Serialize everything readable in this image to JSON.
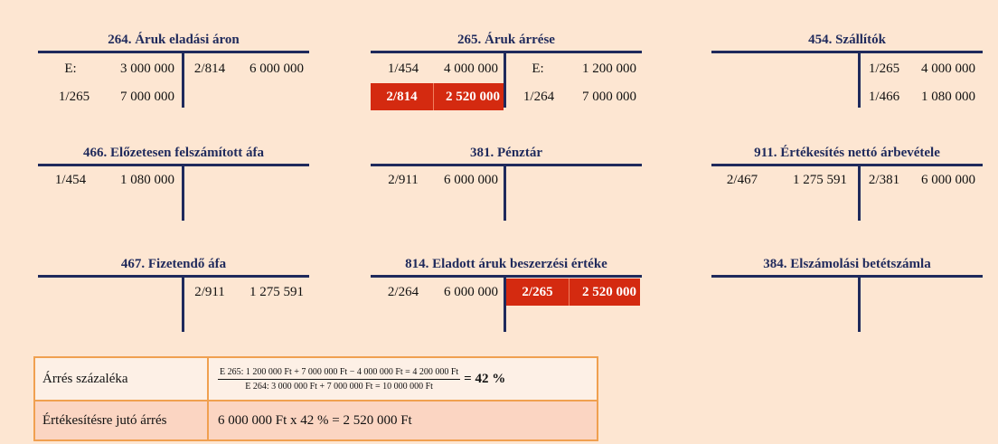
{
  "accounts": [
    {
      "title": "264. Áruk eladási áron",
      "debit": [
        [
          "E:",
          "3 000 000"
        ],
        [
          "1/265",
          "7 000 000"
        ]
      ],
      "credit": [
        [
          "2/814",
          "6 000 000"
        ]
      ]
    },
    {
      "title": "265. Áruk árrése",
      "debit": [
        [
          "1/454",
          "4 000 000"
        ],
        [
          "2/814",
          "2 520 000"
        ]
      ],
      "credit": [
        [
          "E:",
          "1 200 000"
        ],
        [
          "1/264",
          "7 000 000"
        ]
      ]
    },
    {
      "title": "454. Szállítók",
      "debit": [],
      "credit": [
        [
          "1/265",
          "4 000 000"
        ],
        [
          "1/466",
          "1 080 000"
        ]
      ]
    },
    {
      "title": "466. Előzetesen felszámított áfa",
      "debit": [
        [
          "1/454",
          "1 080 000"
        ]
      ],
      "credit": []
    },
    {
      "title": "381. Pénztár",
      "debit": [
        [
          "2/911",
          "6 000 000"
        ]
      ],
      "credit": []
    },
    {
      "title": "911. Értékesítés nettó árbevétele",
      "debit": [
        [
          "2/467",
          "1 275 591"
        ]
      ],
      "credit": [
        [
          "2/381",
          "6 000 000"
        ]
      ]
    },
    {
      "title": "467. Fizetendő áfa",
      "debit": [],
      "credit": [
        [
          "2/911",
          "1 275 591"
        ]
      ]
    },
    {
      "title": "814. Eladott áruk beszerzési értéke",
      "debit": [
        [
          "2/264",
          "6 000 000"
        ]
      ],
      "credit": [
        [
          "2/265",
          "2 520 000"
        ]
      ]
    },
    {
      "title": "384. Elszámolási betétszámla",
      "debit": [],
      "credit": []
    }
  ],
  "highlight_color": "#d42a10",
  "summary": {
    "row1_label": "Árrés százaléka",
    "row1_numerator": "E 265: 1 200 000 Ft + 7 000 000 Ft − 4 000 000 Ft = 4 200 000 Ft",
    "row1_denominator": "E 264: 3 000 000 Ft + 7 000 000 Ft = 10 000 000 Ft",
    "row1_result": "= 42 %",
    "row2_label": "Értékesítésre jutó árrés",
    "row2_value": "6 000 000 Ft x 42 % = 2 520 000 Ft"
  }
}
